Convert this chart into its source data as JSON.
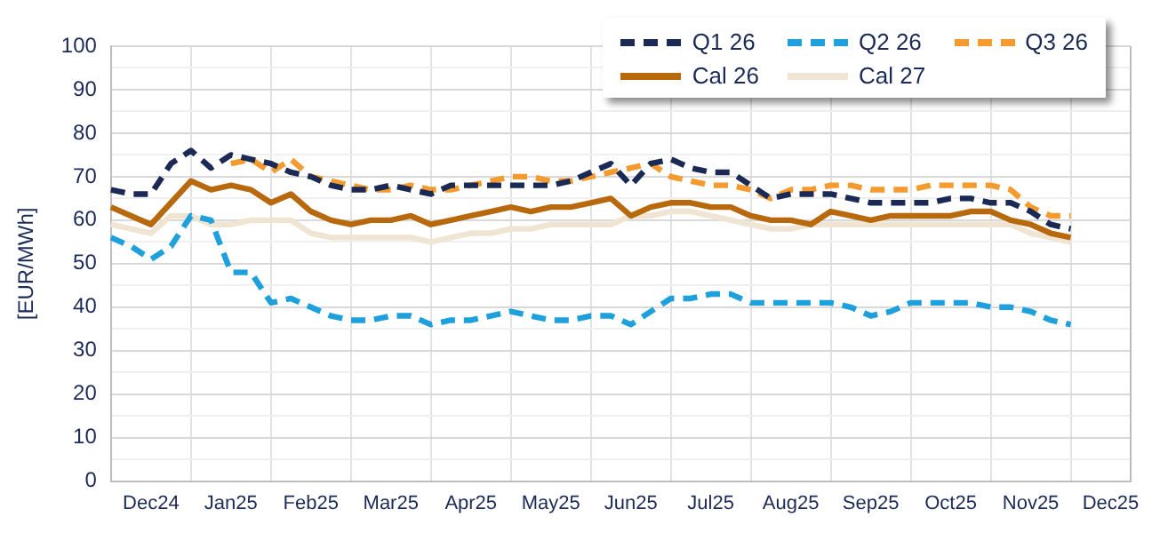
{
  "chart_data": {
    "type": "line",
    "ylabel": "[EUR/MWh]",
    "categories": [
      null,
      null,
      "Dec24",
      null,
      null,
      null,
      "Jan25",
      null,
      null,
      null,
      "Feb25",
      null,
      null,
      null,
      "Mar25",
      null,
      null,
      null,
      "Apr25",
      null,
      null,
      null,
      "May25",
      null,
      null,
      null,
      "Jun25",
      null,
      null,
      null,
      "Jul25",
      null,
      null,
      null,
      "Aug25",
      null,
      null,
      null,
      "Sep25",
      null,
      null,
      null,
      "Oct25",
      null,
      null,
      null,
      "Nov25",
      null,
      null,
      null,
      "Dec25",
      null
    ],
    "ylim": [
      0,
      100
    ],
    "yticks": [
      0,
      {
        "value": 5,
        "label": null
      },
      10,
      {
        "value": 15,
        "label": null
      },
      20,
      {
        "value": 25,
        "label": null
      },
      30,
      {
        "value": 35,
        "label": null
      },
      40,
      {
        "value": 45,
        "label": null
      },
      50,
      {
        "value": 55,
        "label": null
      },
      60,
      {
        "value": 65,
        "label": null
      },
      70,
      {
        "value": 75,
        "label": null
      },
      80,
      {
        "value": 85,
        "label": null
      },
      90,
      {
        "value": 95,
        "label": null
      },
      100
    ],
    "grid": true,
    "legend": "top right",
    "marker": "none",
    "series": [
      {
        "name": "Q1 26",
        "color": "#1b2a55",
        "line_style": "dashed",
        "values": [
          67,
          66,
          66,
          73,
          76,
          72,
          75,
          74,
          73,
          71,
          70,
          68,
          67,
          67,
          68,
          67,
          66,
          68,
          68,
          68,
          68,
          68,
          68,
          69,
          71,
          73,
          68,
          73,
          74,
          72,
          71,
          71,
          68,
          65,
          66,
          66,
          66,
          65,
          64,
          64,
          64,
          64,
          65,
          65,
          64,
          64,
          62,
          59,
          58,
          null,
          null,
          null
        ]
      },
      {
        "name": "Q2 26",
        "color": "#1ea0dc",
        "line_style": "dashed",
        "values": [
          56,
          54,
          51,
          54,
          61,
          60,
          48,
          48,
          41,
          42,
          40,
          38,
          37,
          37,
          38,
          38,
          36,
          37,
          37,
          38,
          39,
          38,
          37,
          37,
          38,
          38,
          36,
          39,
          42,
          42,
          43,
          43,
          41,
          41,
          41,
          41,
          41,
          40,
          38,
          39,
          41,
          41,
          41,
          41,
          40,
          40,
          39,
          37,
          36,
          null,
          null,
          null
        ]
      },
      {
        "name": "Q3 26",
        "color": "#f59a2e",
        "line_style": "dashed",
        "values": [
          null,
          null,
          null,
          null,
          null,
          null,
          73,
          74,
          71,
          74,
          70,
          69,
          68,
          67,
          67,
          68,
          67,
          67,
          68,
          69,
          70,
          70,
          69,
          69,
          70,
          71,
          72,
          73,
          70,
          69,
          68,
          68,
          67,
          65,
          67,
          67,
          68,
          68,
          67,
          67,
          67,
          68,
          68,
          68,
          68,
          67,
          63,
          61,
          61,
          null,
          null,
          null
        ]
      },
      {
        "name": "Cal 26",
        "color": "#b8690e",
        "line_style": "solid",
        "values": [
          63,
          61,
          59,
          64,
          69,
          67,
          68,
          67,
          64,
          66,
          62,
          60,
          59,
          60,
          60,
          61,
          59,
          60,
          61,
          62,
          63,
          62,
          63,
          63,
          64,
          65,
          61,
          63,
          64,
          64,
          63,
          63,
          61,
          60,
          60,
          59,
          62,
          61,
          60,
          61,
          61,
          61,
          61,
          62,
          62,
          60,
          59,
          57,
          56,
          null,
          null,
          null
        ]
      },
      {
        "name": "Cal 27",
        "color": "#f0e4d2",
        "line_style": "solid",
        "values": [
          59,
          58,
          57,
          61,
          61,
          59,
          59,
          60,
          60,
          60,
          57,
          56,
          56,
          56,
          56,
          56,
          55,
          56,
          57,
          57,
          58,
          58,
          59,
          59,
          59,
          59,
          61,
          61,
          62,
          62,
          61,
          60,
          59,
          58,
          58,
          59,
          59,
          59,
          59,
          59,
          59,
          59,
          59,
          59,
          59,
          59,
          57,
          56,
          55,
          null,
          null,
          null
        ]
      }
    ]
  }
}
